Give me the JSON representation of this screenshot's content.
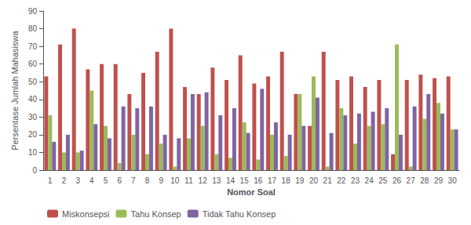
{
  "chart_data": {
    "type": "bar",
    "xlabel": "Nomor Soal",
    "ylabel": "Persentase Jumlah Mahasiswa",
    "categories": [
      1,
      2,
      3,
      4,
      5,
      6,
      7,
      8,
      9,
      10,
      11,
      12,
      13,
      14,
      15,
      16,
      17,
      18,
      19,
      20,
      21,
      22,
      23,
      24,
      25,
      26,
      27,
      28,
      29,
      30
    ],
    "series": [
      {
        "name": "Miskonsepsi",
        "color": "#C0504D",
        "values": [
          53,
          71,
          80,
          57,
          60,
          60,
          43,
          55,
          67,
          80,
          47,
          43,
          58,
          51,
          65,
          49,
          53,
          67,
          43,
          25,
          67,
          51,
          53,
          47,
          51,
          9,
          51,
          54,
          52,
          53
        ]
      },
      {
        "name": "Tahu Konsep",
        "color": "#9BBB59",
        "values": [
          31,
          10,
          10,
          45,
          25,
          4,
          20,
          9,
          15,
          2,
          18,
          25,
          9,
          7,
          27,
          6,
          20,
          8,
          43,
          53,
          2,
          35,
          15,
          25,
          26,
          71,
          2,
          29,
          38,
          23
        ]
      },
      {
        "name": "Tidak Tahu Konsep",
        "color": "#8064A2",
        "values": [
          16,
          20,
          11,
          26,
          18,
          36,
          35,
          36,
          20,
          18,
          43,
          44,
          31,
          35,
          21,
          46,
          27,
          20,
          25,
          41,
          21,
          31,
          32,
          33,
          35,
          20,
          36,
          43,
          32,
          23
        ]
      }
    ],
    "ylim": [
      0,
      90
    ],
    "yticks": [
      0,
      10,
      20,
      30,
      40,
      50,
      60,
      70,
      80,
      90
    ],
    "grid": false,
    "legend": "lower left"
  }
}
